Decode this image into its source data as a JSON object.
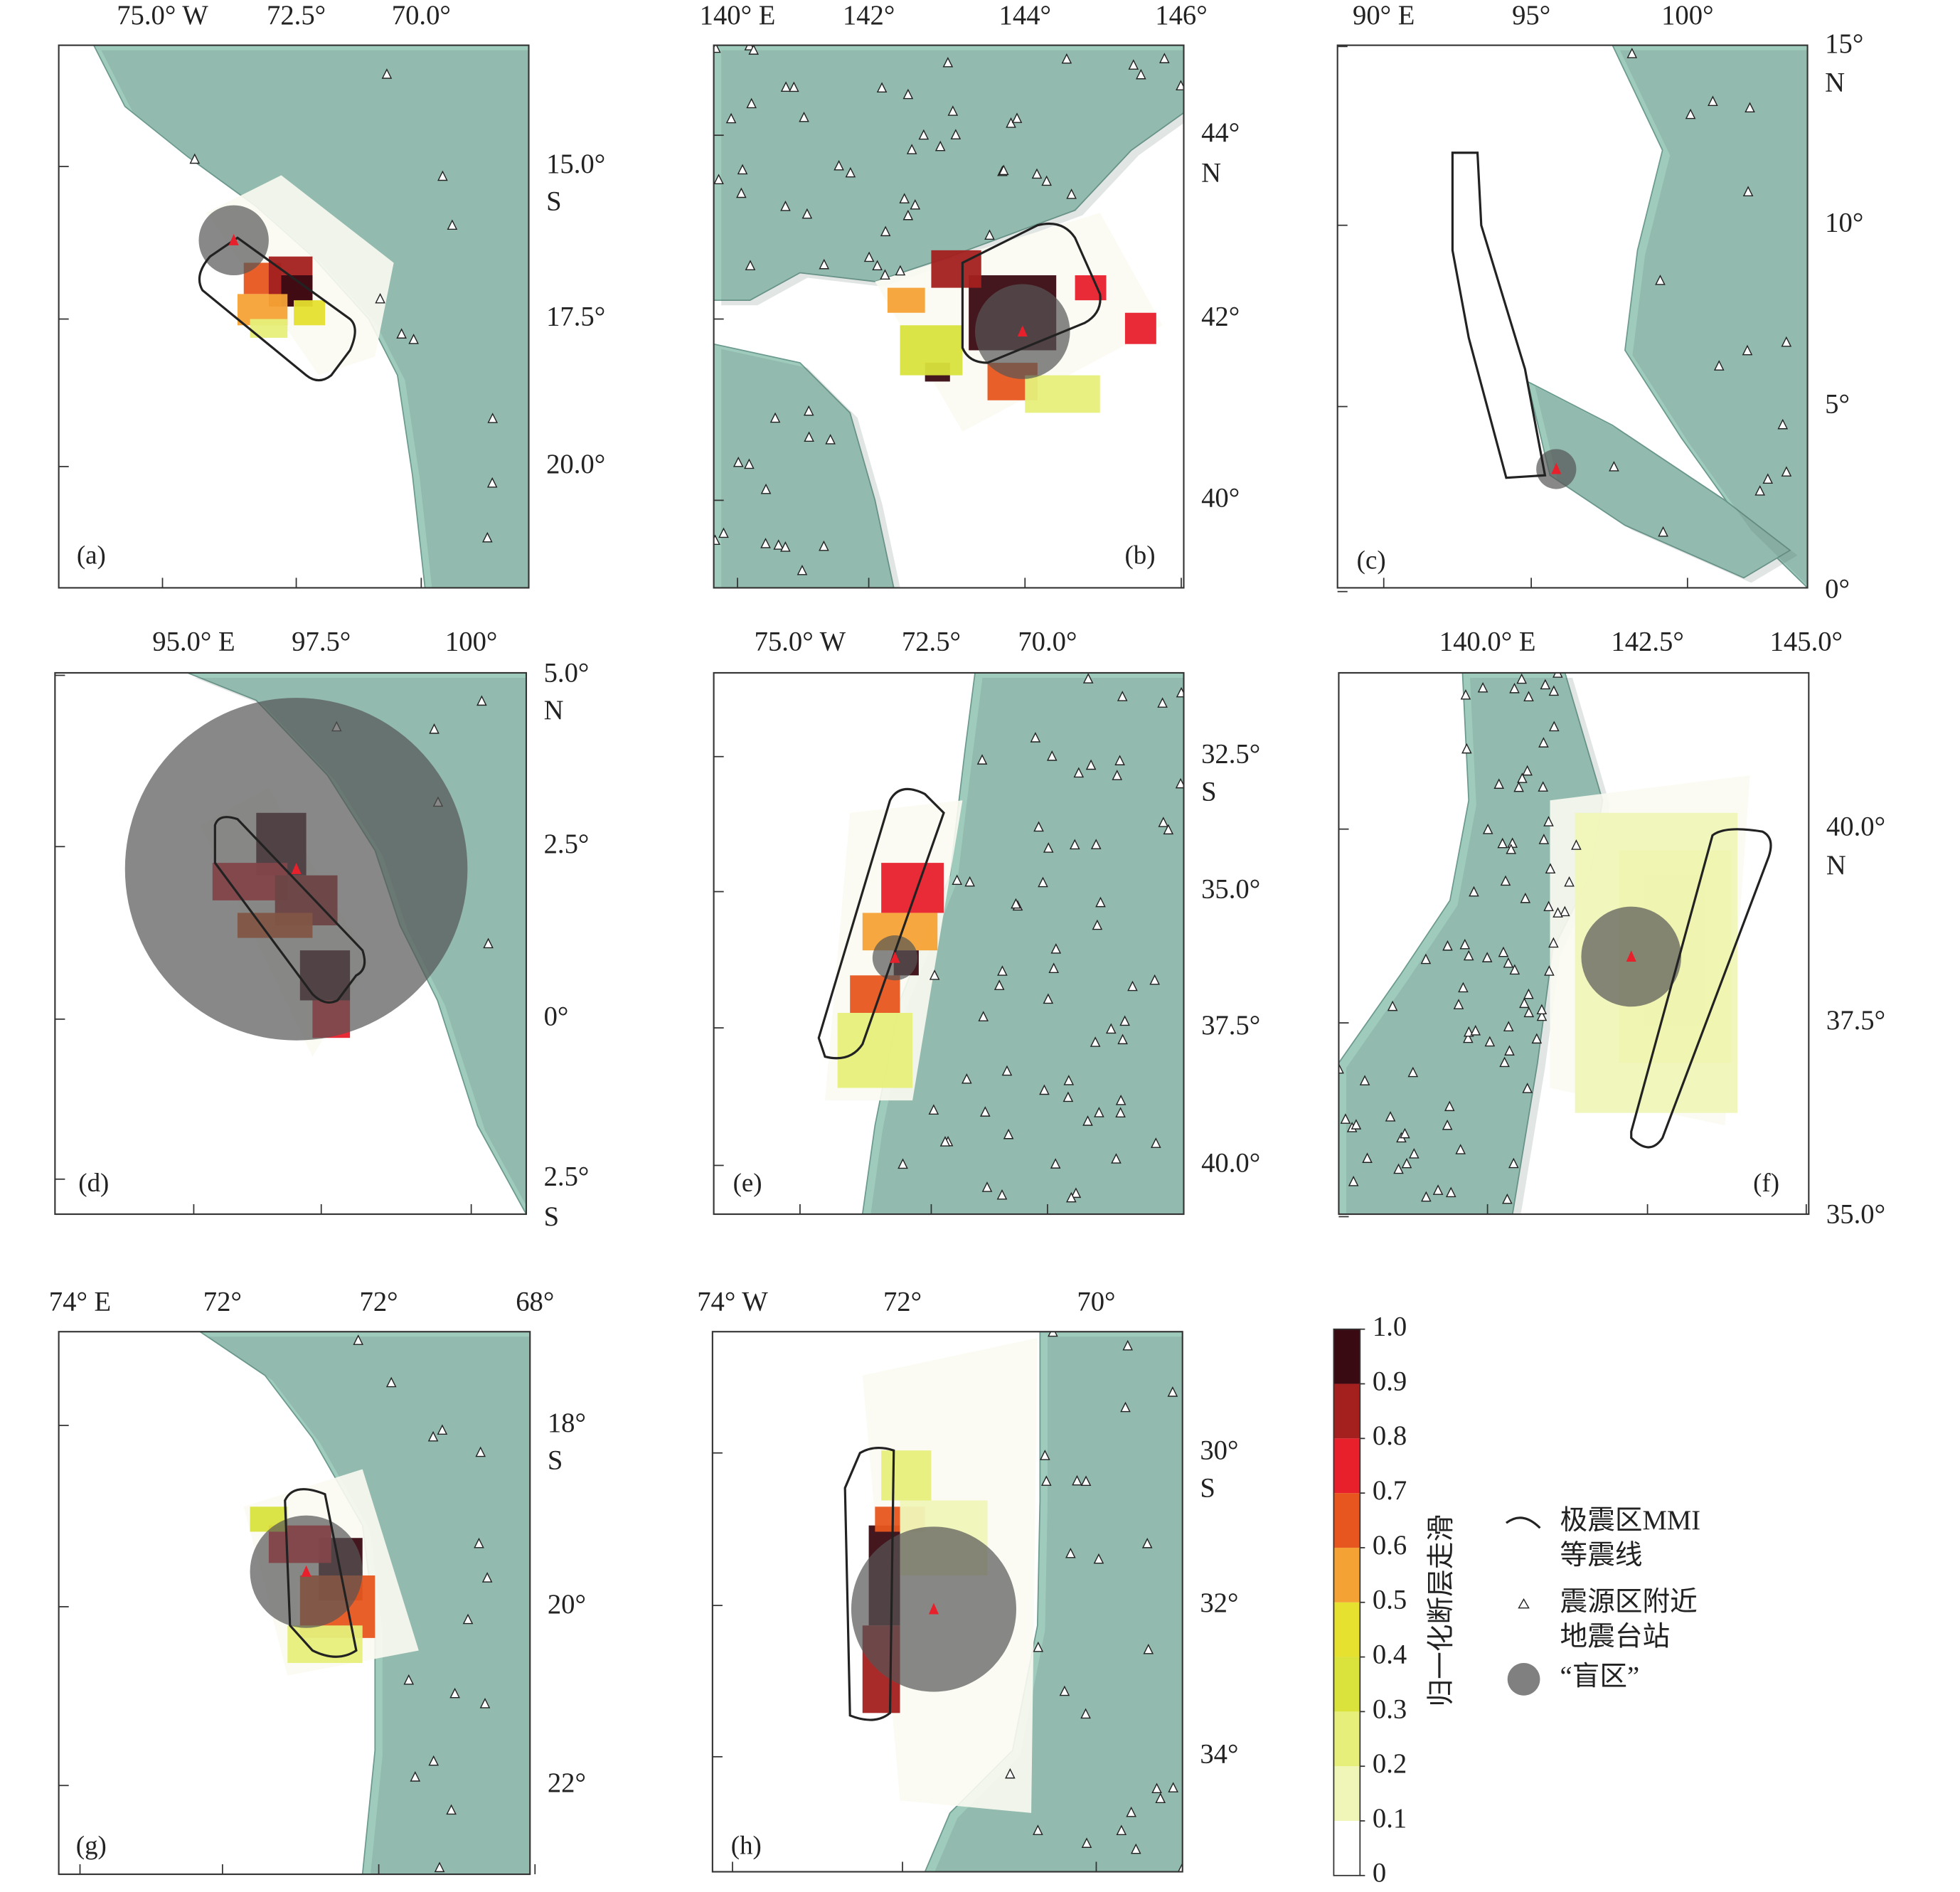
{
  "panels": [
    {
      "label": "(a)",
      "top_labels": [
        "75.0° W",
        "72.5°",
        "70.0°"
      ],
      "right_labels": [
        "15.0°",
        "S",
        "17.5°",
        "20.0°"
      ]
    },
    {
      "label": "(b)",
      "top_labels": [
        "140° E",
        "142°",
        "144°",
        "146°"
      ],
      "right_labels": [
        "44°",
        "N",
        "42°",
        "40°"
      ]
    },
    {
      "label": "(c)",
      "top_labels": [
        "90° E",
        "95°",
        "100°"
      ],
      "right_labels": [
        "15°",
        "N",
        "10°",
        "5°",
        "0°"
      ]
    },
    {
      "label": "(d)",
      "top_labels": [
        "95.0° E",
        "97.5°",
        "100°"
      ],
      "right_labels": [
        "5.0°",
        "N",
        "2.5°",
        "0°",
        "2.5°",
        "S"
      ]
    },
    {
      "label": "(e)",
      "top_labels": [
        "75.0° W",
        "72.5°",
        "70.0°"
      ],
      "right_labels": [
        "32.5°",
        "S",
        "35.0°",
        "37.5°",
        "40.0°"
      ]
    },
    {
      "label": "(f)",
      "top_labels": [
        "140.0° E",
        "142.5°",
        "145.0°"
      ],
      "right_labels": [
        "40.0°",
        "N",
        "37.5°",
        "35.0°"
      ]
    },
    {
      "label": "(g)",
      "top_labels": [
        "74° E",
        "72°",
        "72°",
        "68°"
      ],
      "right_labels": [
        "18°",
        "S",
        "20°",
        "22°"
      ]
    },
    {
      "label": "(h)",
      "top_labels": [
        "74° W",
        "72°",
        "70°"
      ],
      "right_labels": [
        "30°",
        "S",
        "32°",
        "34°"
      ]
    }
  ],
  "colorbar": {
    "title": "归一化断层走滑",
    "ticks": [
      {
        "value": 1,
        "label": "1.0"
      },
      0.9,
      0.8,
      0.7,
      0.6,
      0.5,
      0.4,
      0.3,
      0.2,
      0.1,
      0
    ],
    "colors": [
      "#ffffff",
      "#f0f5b8",
      "#e6ef7a",
      "#d9e33c",
      "#e6e02e",
      "#f5a235",
      "#e8561f",
      "#e8202c",
      "#a3201f",
      "#3a0a12"
    ]
  },
  "legend": [
    {
      "lines": [
        "极震区MMI",
        "等震线"
      ]
    },
    {
      "lines": [
        "震源区附近",
        "地震台站"
      ]
    },
    {
      "lines": [
        "“盲区”"
      ]
    }
  ]
}
